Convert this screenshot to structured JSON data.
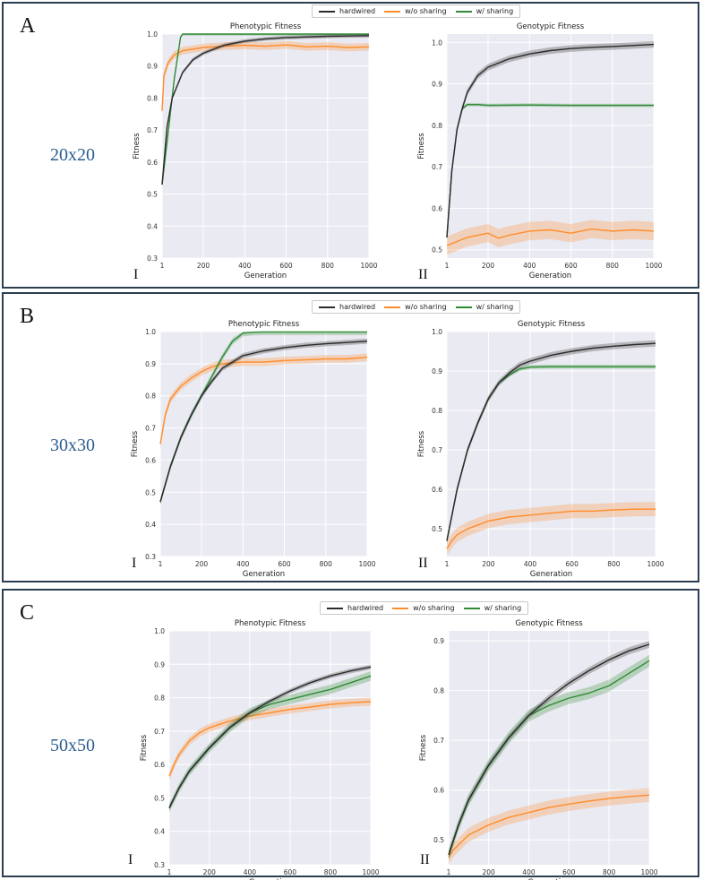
{
  "colors": {
    "hardwired": "#2b2b2b",
    "wo_sharing": "#ff8c2a",
    "w_sharing": "#2e8b34",
    "plot_bg": "#eaeaf2",
    "panel_border": "#2c3e50",
    "size_label": "#2a5d8f"
  },
  "legend": [
    {
      "key": "hardwired",
      "label": "hardwired"
    },
    {
      "key": "wo_sharing",
      "label": "w/o sharing"
    },
    {
      "key": "w_sharing",
      "label": "w/ sharing"
    }
  ],
  "panels": [
    {
      "letter": "A",
      "size_label": "20x20",
      "roman_left": "I",
      "roman_right": "II"
    },
    {
      "letter": "B",
      "size_label": "30x30",
      "roman_left": "I",
      "roman_right": "II"
    },
    {
      "letter": "C",
      "size_label": "50x50",
      "roman_left": "I",
      "roman_right": "II"
    }
  ],
  "chart_data": [
    {
      "type": "line",
      "panel": "A",
      "title": "Phenotypic Fitness",
      "xlabel": "Generation",
      "ylabel": "Fitness",
      "xlim": [
        1,
        1000
      ],
      "ylim": [
        0.3,
        1.0
      ],
      "xticks": [
        1,
        200,
        400,
        600,
        800,
        1000
      ],
      "yticks": [
        0.3,
        0.4,
        0.5,
        0.6,
        0.7,
        0.8,
        0.9,
        1.0
      ],
      "ytick_labels": [
        "0.3",
        "0.4",
        "0.5",
        "0.6",
        "0.7",
        "0.8",
        "0.9",
        "1.0"
      ],
      "series": [
        {
          "name": "hardwired",
          "x": [
            1,
            25,
            50,
            100,
            150,
            200,
            300,
            400,
            500,
            600,
            800,
            1000
          ],
          "y": [
            0.53,
            0.71,
            0.8,
            0.88,
            0.92,
            0.94,
            0.965,
            0.978,
            0.985,
            0.989,
            0.993,
            0.995
          ],
          "band": 0.006
        },
        {
          "name": "w/o sharing",
          "x": [
            1,
            10,
            30,
            60,
            100,
            200,
            300,
            400,
            500,
            600,
            700,
            800,
            900,
            1000
          ],
          "y": [
            0.76,
            0.87,
            0.91,
            0.935,
            0.948,
            0.958,
            0.962,
            0.965,
            0.962,
            0.966,
            0.96,
            0.962,
            0.958,
            0.96
          ],
          "band": 0.012
        },
        {
          "name": "w/ sharing",
          "x": [
            1,
            30,
            60,
            90,
            100,
            200,
            400,
            600,
            800,
            1000
          ],
          "y": [
            0.53,
            0.69,
            0.86,
            0.99,
            1.0,
            1.0,
            1.0,
            1.0,
            1.0,
            1.0
          ],
          "band": 0.005
        }
      ]
    },
    {
      "type": "line",
      "panel": "A",
      "title": "Genotypic Fitness",
      "xlabel": "Generation",
      "ylabel": "Fitness",
      "xlim": [
        1,
        1000
      ],
      "ylim": [
        0.48,
        1.02
      ],
      "xticks": [
        1,
        200,
        400,
        600,
        800,
        1000
      ],
      "yticks": [
        0.5,
        0.6,
        0.7,
        0.8,
        0.9,
        1.0
      ],
      "ytick_labels": [
        "0.5",
        "0.6",
        "0.7",
        "0.8",
        "0.9",
        "1.0"
      ],
      "series": [
        {
          "name": "hardwired",
          "x": [
            1,
            25,
            50,
            75,
            100,
            150,
            200,
            300,
            400,
            500,
            600,
            700,
            800,
            1000
          ],
          "y": [
            0.53,
            0.69,
            0.79,
            0.84,
            0.88,
            0.92,
            0.94,
            0.96,
            0.972,
            0.98,
            0.985,
            0.988,
            0.99,
            0.995
          ],
          "band": 0.008
        },
        {
          "name": "w/o sharing",
          "x": [
            1,
            50,
            100,
            200,
            250,
            300,
            400,
            500,
            600,
            700,
            800,
            900,
            1000
          ],
          "y": [
            0.51,
            0.52,
            0.53,
            0.54,
            0.528,
            0.535,
            0.545,
            0.548,
            0.54,
            0.55,
            0.545,
            0.548,
            0.545
          ],
          "band": 0.022
        },
        {
          "name": "w/ sharing",
          "x": [
            1,
            25,
            50,
            75,
            100,
            150,
            200,
            400,
            600,
            800,
            1000
          ],
          "y": [
            0.53,
            0.69,
            0.79,
            0.84,
            0.85,
            0.85,
            0.848,
            0.849,
            0.848,
            0.848,
            0.848
          ],
          "band": 0.004
        }
      ]
    },
    {
      "type": "line",
      "panel": "B",
      "title": "Phenotypic Fitness",
      "xlabel": "Generation",
      "ylabel": "Fitness",
      "xlim": [
        1,
        1000
      ],
      "ylim": [
        0.3,
        1.0
      ],
      "xticks": [
        1,
        200,
        400,
        600,
        800,
        1000
      ],
      "yticks": [
        0.3,
        0.4,
        0.5,
        0.6,
        0.7,
        0.8,
        0.9,
        1.0
      ],
      "ytick_labels": [
        "0.3",
        "0.4",
        "0.5",
        "0.6",
        "0.7",
        "0.8",
        "0.9",
        "1.0"
      ],
      "series": [
        {
          "name": "hardwired",
          "x": [
            1,
            50,
            100,
            150,
            200,
            250,
            300,
            400,
            500,
            600,
            700,
            800,
            900,
            1000
          ],
          "y": [
            0.47,
            0.58,
            0.67,
            0.74,
            0.8,
            0.845,
            0.885,
            0.925,
            0.94,
            0.95,
            0.957,
            0.962,
            0.966,
            0.97
          ],
          "band": 0.008
        },
        {
          "name": "w/o sharing",
          "x": [
            1,
            25,
            50,
            100,
            150,
            200,
            250,
            300,
            400,
            500,
            600,
            700,
            800,
            900,
            1000
          ],
          "y": [
            0.65,
            0.74,
            0.79,
            0.83,
            0.855,
            0.875,
            0.89,
            0.9,
            0.905,
            0.905,
            0.91,
            0.912,
            0.915,
            0.915,
            0.92
          ],
          "band": 0.012
        },
        {
          "name": "w/ sharing",
          "x": [
            1,
            50,
            100,
            150,
            200,
            250,
            300,
            350,
            400,
            450,
            500,
            600,
            800,
            1000
          ],
          "y": [
            0.47,
            0.58,
            0.67,
            0.74,
            0.8,
            0.86,
            0.92,
            0.97,
            0.995,
            0.998,
            0.999,
            0.999,
            0.999,
            0.999
          ],
          "band": 0.01
        }
      ]
    },
    {
      "type": "line",
      "panel": "B",
      "title": "Genotypic Fitness",
      "xlabel": "Generation",
      "ylabel": "Fitness",
      "xlim": [
        1,
        1000
      ],
      "ylim": [
        0.43,
        1.0
      ],
      "xticks": [
        1,
        200,
        400,
        600,
        800,
        1000
      ],
      "yticks": [
        0.5,
        0.6,
        0.7,
        0.8,
        0.9,
        1.0
      ],
      "ytick_labels": [
        "0.5",
        "0.6",
        "0.7",
        "0.8",
        "0.9",
        "1.0"
      ],
      "series": [
        {
          "name": "hardwired",
          "x": [
            1,
            50,
            100,
            150,
            200,
            250,
            300,
            350,
            400,
            500,
            600,
            700,
            800,
            900,
            1000
          ],
          "y": [
            0.47,
            0.6,
            0.7,
            0.77,
            0.83,
            0.87,
            0.895,
            0.915,
            0.925,
            0.94,
            0.95,
            0.958,
            0.963,
            0.967,
            0.97
          ],
          "band": 0.008
        },
        {
          "name": "w/o sharing",
          "x": [
            1,
            25,
            50,
            100,
            150,
            200,
            300,
            400,
            500,
            600,
            700,
            800,
            900,
            1000
          ],
          "y": [
            0.45,
            0.47,
            0.485,
            0.5,
            0.51,
            0.52,
            0.53,
            0.535,
            0.54,
            0.545,
            0.545,
            0.548,
            0.55,
            0.55
          ],
          "band": 0.018
        },
        {
          "name": "w/ sharing",
          "x": [
            1,
            50,
            100,
            150,
            200,
            250,
            300,
            350,
            400,
            500,
            600,
            800,
            1000
          ],
          "y": [
            0.47,
            0.6,
            0.7,
            0.77,
            0.83,
            0.87,
            0.89,
            0.905,
            0.91,
            0.911,
            0.911,
            0.911,
            0.911
          ],
          "band": 0.005
        }
      ]
    },
    {
      "type": "line",
      "panel": "C",
      "title": "Phenotypic Fitness",
      "xlabel": "Generation",
      "ylabel": "Fitness",
      "xlim": [
        1,
        1000
      ],
      "ylim": [
        0.3,
        1.0
      ],
      "xticks": [
        1,
        200,
        400,
        600,
        800,
        1000
      ],
      "yticks": [
        0.3,
        0.4,
        0.5,
        0.6,
        0.7,
        0.8,
        0.9,
        1.0
      ],
      "ytick_labels": [
        "0.3",
        "0.4",
        "0.5",
        "0.6",
        "0.7",
        "0.8",
        "0.9",
        "1.0"
      ],
      "series": [
        {
          "name": "hardwired",
          "x": [
            1,
            50,
            100,
            200,
            300,
            400,
            500,
            600,
            700,
            800,
            900,
            1000
          ],
          "y": [
            0.47,
            0.53,
            0.58,
            0.65,
            0.71,
            0.755,
            0.79,
            0.82,
            0.845,
            0.865,
            0.88,
            0.892
          ],
          "band": 0.007
        },
        {
          "name": "w/o sharing",
          "x": [
            1,
            25,
            50,
            100,
            150,
            200,
            300,
            400,
            500,
            600,
            700,
            800,
            900,
            1000
          ],
          "y": [
            0.565,
            0.6,
            0.63,
            0.67,
            0.695,
            0.71,
            0.73,
            0.745,
            0.755,
            0.765,
            0.772,
            0.78,
            0.785,
            0.788
          ],
          "band": 0.012
        },
        {
          "name": "w/ sharing",
          "x": [
            1,
            50,
            100,
            200,
            300,
            400,
            500,
            600,
            700,
            800,
            900,
            1000
          ],
          "y": [
            0.47,
            0.53,
            0.58,
            0.65,
            0.71,
            0.755,
            0.78,
            0.795,
            0.81,
            0.825,
            0.845,
            0.865
          ],
          "band": 0.014
        }
      ]
    },
    {
      "type": "line",
      "panel": "C",
      "title": "Genotypic Fitness",
      "xlabel": "Generation",
      "ylabel": "Fitness",
      "xlim": [
        1,
        1000
      ],
      "ylim": [
        0.45,
        0.92
      ],
      "xticks": [
        1,
        200,
        400,
        600,
        800,
        1000
      ],
      "yticks": [
        0.5,
        0.6,
        0.7,
        0.8,
        0.9
      ],
      "ytick_labels": [
        "0.5",
        "0.6",
        "0.7",
        "0.8",
        "0.9"
      ],
      "series": [
        {
          "name": "hardwired",
          "x": [
            1,
            50,
            100,
            200,
            300,
            400,
            500,
            600,
            700,
            800,
            900,
            1000
          ],
          "y": [
            0.47,
            0.53,
            0.58,
            0.65,
            0.705,
            0.75,
            0.785,
            0.815,
            0.84,
            0.862,
            0.88,
            0.893
          ],
          "band": 0.007
        },
        {
          "name": "w/o sharing",
          "x": [
            1,
            25,
            50,
            100,
            200,
            300,
            400,
            500,
            600,
            700,
            800,
            900,
            1000
          ],
          "y": [
            0.465,
            0.48,
            0.49,
            0.51,
            0.53,
            0.545,
            0.555,
            0.565,
            0.572,
            0.578,
            0.583,
            0.587,
            0.59
          ],
          "band": 0.014
        },
        {
          "name": "w/ sharing",
          "x": [
            1,
            50,
            100,
            200,
            300,
            400,
            500,
            600,
            700,
            800,
            900,
            1000
          ],
          "y": [
            0.47,
            0.53,
            0.58,
            0.65,
            0.705,
            0.75,
            0.77,
            0.785,
            0.795,
            0.81,
            0.835,
            0.86
          ],
          "band": 0.012
        }
      ]
    }
  ]
}
